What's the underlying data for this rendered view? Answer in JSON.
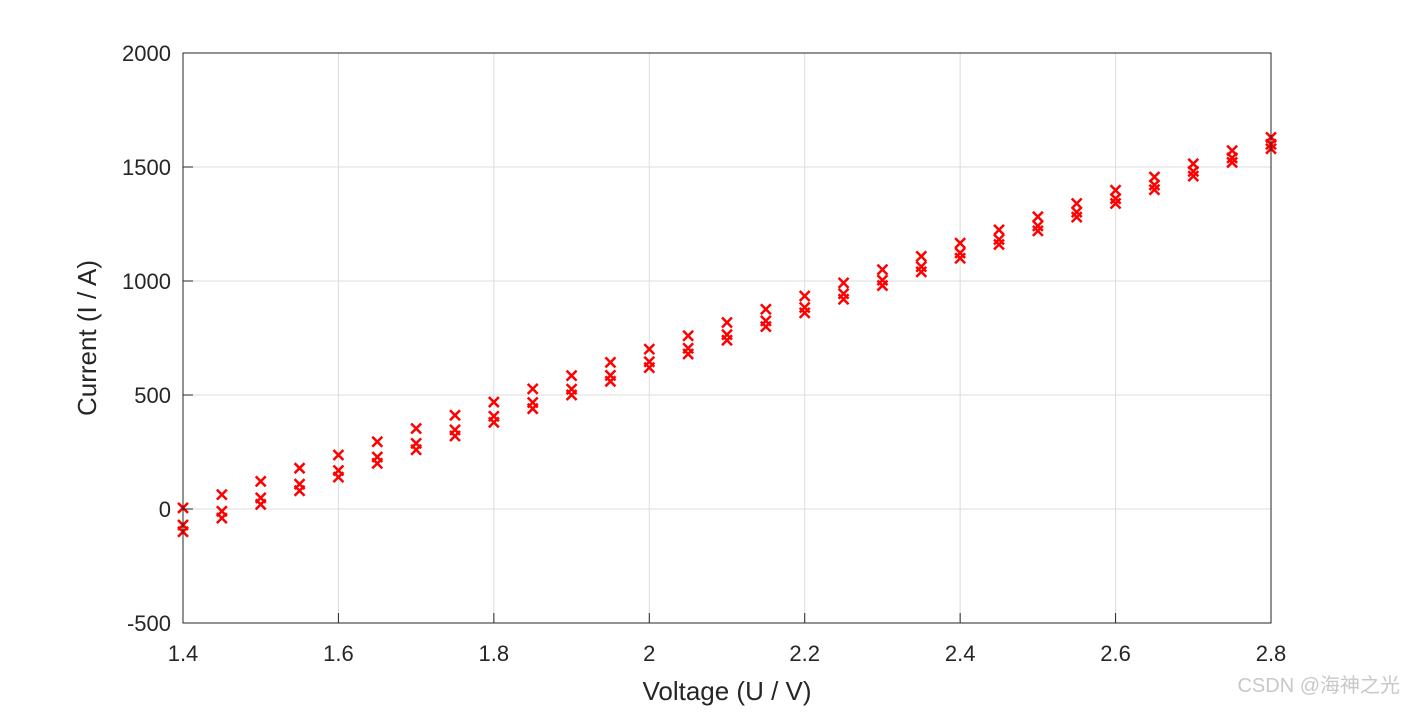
{
  "chart_data": {
    "type": "scatter",
    "xlabel": "Voltage (U / V)",
    "ylabel": "Current (I / A)",
    "x": [
      1.4,
      1.45,
      1.5,
      1.55,
      1.6,
      1.65,
      1.7,
      1.75,
      1.8,
      1.85,
      1.9,
      1.95,
      2.0,
      2.05,
      2.1,
      2.15,
      2.2,
      2.25,
      2.3,
      2.35,
      2.4,
      2.45,
      2.5,
      2.55,
      2.6,
      2.65,
      2.7,
      2.75,
      2.8
    ],
    "series": [
      {
        "color": "#ff0000",
        "values": [
          5,
          63,
          121,
          179,
          237,
          295,
          353,
          411,
          469,
          527,
          585,
          643,
          701,
          760,
          818,
          876,
          934,
          992,
          1050,
          1108,
          1166,
          1224,
          1282,
          1340,
          1398,
          1456,
          1514,
          1572,
          1630
        ]
      },
      {
        "color": "#ff0000",
        "values": [
          -70,
          -10,
          49,
          109,
          169,
          228,
          288,
          347,
          407,
          467,
          526,
          586,
          646,
          705,
          765,
          825,
          884,
          944,
          1004,
          1063,
          1123,
          1182,
          1242,
          1302,
          1361,
          1421,
          1481,
          1540,
          1600
        ]
      },
      {
        "color": "#ff0000",
        "values": [
          -100,
          -40,
          20,
          80,
          140,
          200,
          260,
          320,
          380,
          440,
          500,
          560,
          620,
          680,
          740,
          800,
          860,
          920,
          980,
          1040,
          1100,
          1160,
          1220,
          1280,
          1340,
          1400,
          1460,
          1520,
          1580
        ]
      }
    ],
    "xlim": [
      1.4,
      2.8
    ],
    "xticks": [
      1.4,
      1.6,
      1.8,
      2,
      2.2,
      2.4,
      2.6,
      2.8
    ],
    "ylim": [
      -500,
      2000
    ],
    "yticks": [
      -500,
      0,
      500,
      1000,
      1500,
      2000
    ],
    "grid": true,
    "watermark": "CSDN @海神之光"
  }
}
